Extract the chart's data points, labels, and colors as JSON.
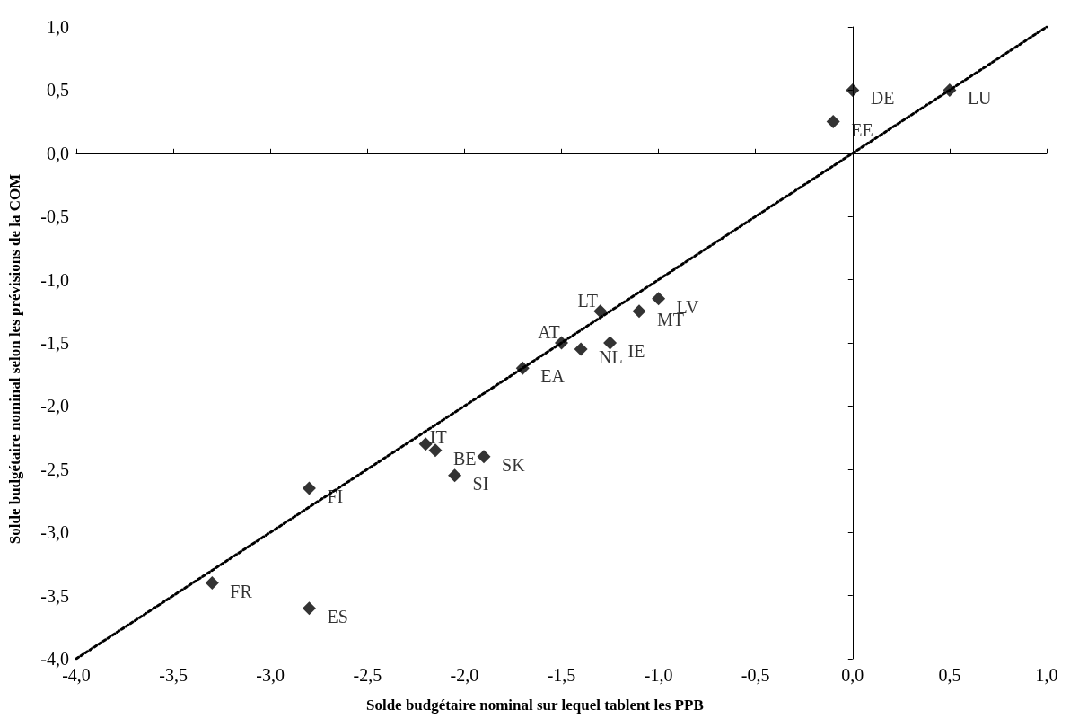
{
  "chart_data": {
    "type": "scatter",
    "xlabel": "Solde budgétaire nominal sur lequel tablent les PPB",
    "ylabel": "Solde budgétaire nominal selon les prévisions de la COM",
    "x": [
      0.0,
      0.5,
      -0.1,
      -1.3,
      -1.0,
      -1.1,
      -1.5,
      -1.4,
      -1.25,
      -1.7,
      -2.2,
      -2.15,
      -1.9,
      -2.05,
      -2.8,
      -3.3,
      -2.8
    ],
    "series": [
      {
        "color": "#000000",
        "marker": "diamond",
        "values": [
          0.5,
          0.5,
          0.25,
          -1.25,
          -1.15,
          -1.25,
          -1.5,
          -1.55,
          -1.5,
          -1.7,
          -2.3,
          -2.35,
          -2.4,
          -2.55,
          -2.65,
          -3.4,
          -3.6
        ]
      },
      {
        "type": "line",
        "color": "#000000",
        "marker": "none",
        "line_style": "dotted",
        "x": [
          -4,
          1
        ],
        "values": [
          -4,
          1
        ]
      }
    ],
    "annotations": [
      {
        "text": "DE",
        "x": 0.0,
        "y": 0.5
      },
      {
        "text": "LU",
        "x": 0.5,
        "y": 0.5
      },
      {
        "text": "EE",
        "x": -0.1,
        "y": 0.25
      },
      {
        "text": "LT",
        "x": -1.3,
        "y": -1.25
      },
      {
        "text": "LV",
        "x": -1.0,
        "y": -1.15
      },
      {
        "text": "MT",
        "x": -1.1,
        "y": -1.25
      },
      {
        "text": "AT",
        "x": -1.5,
        "y": -1.5
      },
      {
        "text": "NL",
        "x": -1.4,
        "y": -1.55
      },
      {
        "text": "IE",
        "x": -1.25,
        "y": -1.5
      },
      {
        "text": "EA",
        "x": -1.7,
        "y": -1.7
      },
      {
        "text": "IT",
        "x": -2.2,
        "y": -2.3
      },
      {
        "text": "BE",
        "x": -2.15,
        "y": -2.35
      },
      {
        "text": "SK",
        "x": -1.9,
        "y": -2.4
      },
      {
        "text": "SI",
        "x": -2.05,
        "y": -2.55
      },
      {
        "text": "FI",
        "x": -2.8,
        "y": -2.65
      },
      {
        "text": "FR",
        "x": -3.3,
        "y": -3.4
      },
      {
        "text": "ES",
        "x": -2.8,
        "y": -3.6
      }
    ],
    "xlim": [
      -4,
      1
    ],
    "ylim": [
      -4,
      1
    ],
    "xticks": [
      {
        "value": -4,
        "label": "-4,0"
      },
      {
        "value": -3.5,
        "label": "-3,5"
      },
      {
        "value": -3,
        "label": "-3,0"
      },
      {
        "value": -2.5,
        "label": "-2,5"
      },
      {
        "value": -2,
        "label": "-2,0"
      },
      {
        "value": -1.5,
        "label": "-1,5"
      },
      {
        "value": -1,
        "label": "-1,0"
      },
      {
        "value": -0.5,
        "label": "-0,5"
      },
      {
        "value": 0,
        "label": "0,0"
      },
      {
        "value": 0.5,
        "label": "0,5"
      },
      {
        "value": 1,
        "label": "1,0"
      }
    ],
    "yticks": [
      {
        "value": -4,
        "label": "-4,0"
      },
      {
        "value": -3.5,
        "label": "-3,5"
      },
      {
        "value": -3,
        "label": "-3,0"
      },
      {
        "value": -2.5,
        "label": "-2,5"
      },
      {
        "value": -2,
        "label": "-2,0"
      },
      {
        "value": -1.5,
        "label": "-1,5"
      },
      {
        "value": -1,
        "label": "-1,0"
      },
      {
        "value": -0.5,
        "label": "-0,5"
      },
      {
        "value": 0,
        "label": "0,0"
      },
      {
        "value": 0.5,
        "label": "0,5"
      },
      {
        "value": 1,
        "label": "1,0"
      }
    ],
    "tick_labels": "xy"
  }
}
